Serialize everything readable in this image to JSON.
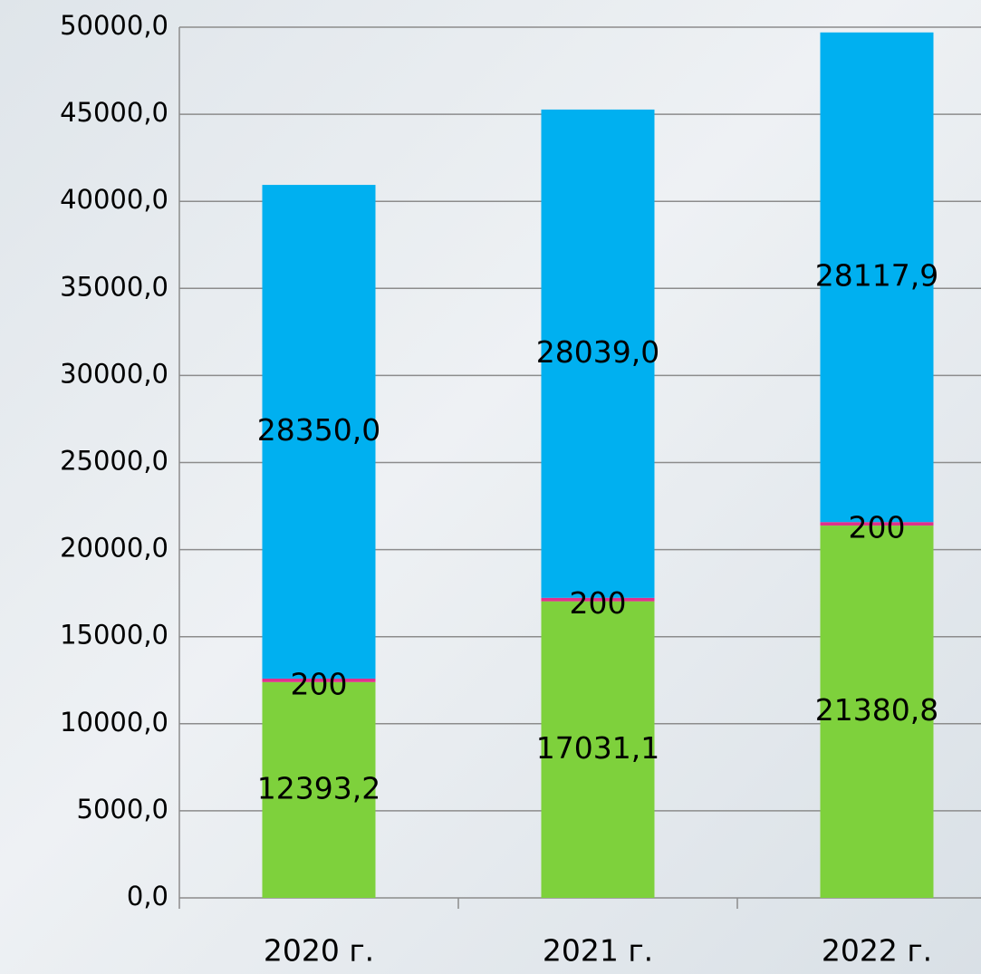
{
  "chart_data": {
    "type": "stacked_bar",
    "categories": [
      "2020 г.",
      "2021 г.",
      "2022 г."
    ],
    "series": [
      {
        "color": "#7ed13c",
        "values": [
          12393.2,
          17031.1,
          21380.8
        ],
        "value_labels": [
          "12393,2",
          "17031,1",
          "21380,8"
        ]
      },
      {
        "color": "#e0318b",
        "values": [
          200,
          200,
          200
        ]
      },
      {
        "color": "#00b0f0",
        "values": [
          28350.0,
          28039.0,
          28117.9
        ],
        "value_labels": [
          "28350,0",
          "28039,0",
          "28117,9"
        ]
      }
    ],
    "ylim": [
      0,
      50000
    ],
    "yticks": [
      {
        "value": 0,
        "label": "0,0"
      },
      {
        "value": 5000,
        "label": "5000,0"
      },
      {
        "value": 10000,
        "label": "10000,0"
      },
      {
        "value": 15000,
        "label": "15000,0"
      },
      {
        "value": 20000,
        "label": "20000,0"
      },
      {
        "value": 25000,
        "label": "25000,0"
      },
      {
        "value": 30000,
        "label": "30000,0"
      },
      {
        "value": 35000,
        "label": "35000,0"
      },
      {
        "value": 40000,
        "label": "40000,0"
      },
      {
        "value": 45000,
        "label": "45000,0"
      },
      {
        "value": 50000,
        "label": "50000,0"
      }
    ],
    "grid": true
  }
}
